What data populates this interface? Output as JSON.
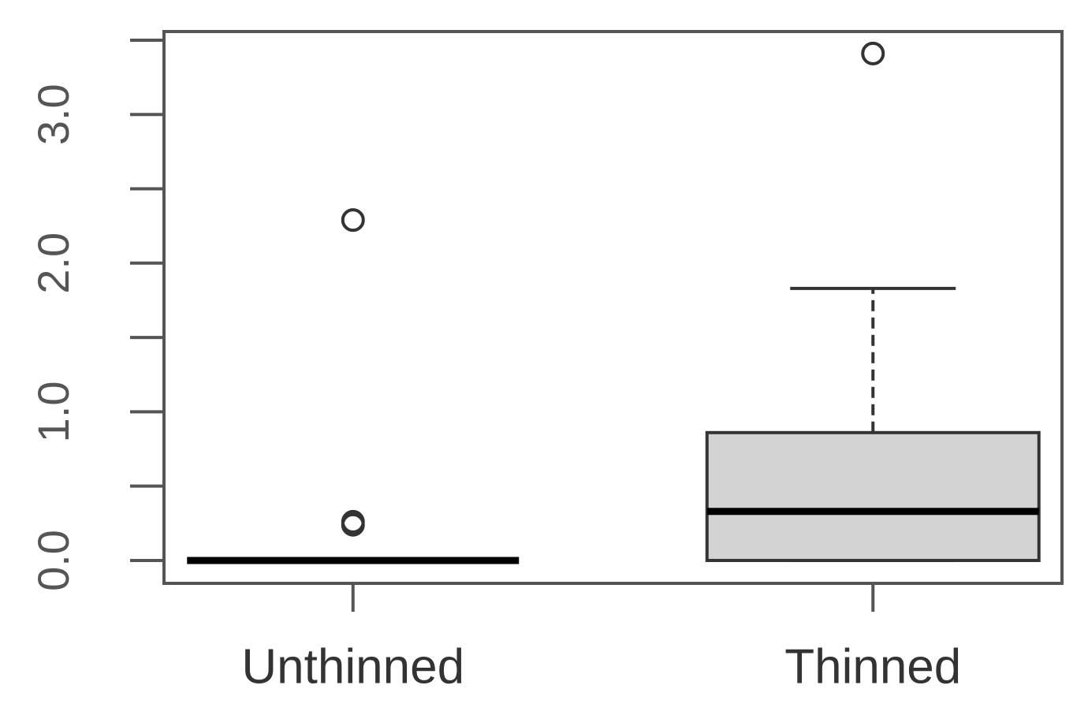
{
  "chart_data": {
    "type": "box",
    "categories": [
      "Unthinned",
      "Thinned"
    ],
    "boxes": [
      {
        "min": 0,
        "q1": 0,
        "median": 0,
        "q3": 0,
        "max": 0,
        "outliers": [
          2.29,
          0.26,
          0.24
        ]
      },
      {
        "min": 0,
        "q1": 0,
        "median": 0.33,
        "q3": 0.86,
        "max": 1.83,
        "outliers": [
          3.41
        ]
      }
    ],
    "box_color": "#d3d3d3",
    "ylim": [
      -0.154,
      3.558
    ],
    "yticks": [
      {
        "value": 0,
        "label": "0.0"
      },
      {
        "value": 0.5,
        "label": null
      },
      {
        "value": 1,
        "label": "1.0"
      },
      {
        "value": 1.5,
        "label": null
      },
      {
        "value": 2,
        "label": "2.0"
      },
      {
        "value": 2.5,
        "label": null
      },
      {
        "value": 3,
        "label": "3.0"
      },
      {
        "value": 3.5,
        "label": null
      }
    ]
  }
}
